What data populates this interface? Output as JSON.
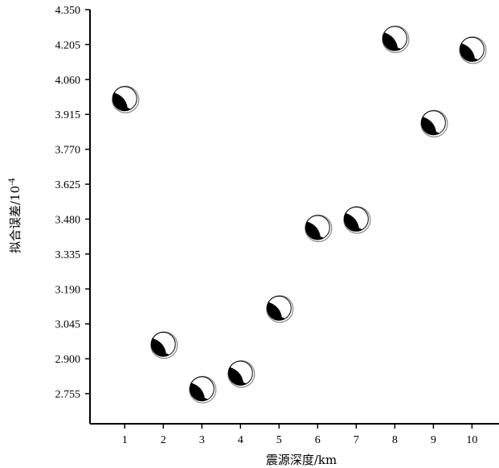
{
  "chart_data": {
    "type": "scatter",
    "marker": "focal-mechanism-beachball",
    "x": [
      1,
      2,
      3,
      4,
      5,
      6,
      7,
      8,
      9,
      10
    ],
    "y": [
      3.98,
      2.96,
      2.775,
      2.84,
      3.11,
      3.445,
      3.48,
      4.23,
      3.88,
      4.185
    ],
    "xlabel": "震源深度/km",
    "ylabel_text": "拟合误差/10",
    "ylabel_exponent": "-4",
    "xticks": [
      "1",
      "2",
      "3",
      "4",
      "5",
      "6",
      "7",
      "8",
      "9",
      "10"
    ],
    "yticks": [
      "2.755",
      "2.900",
      "3.045",
      "3.190",
      "3.335",
      "3.480",
      "3.625",
      "3.770",
      "3.915",
      "4.060",
      "4.205",
      "4.350"
    ],
    "xlim": [
      0.1,
      10.7
    ],
    "ylim": [
      2.63,
      4.35
    ],
    "grid": false,
    "colors": {
      "axis": "#000000",
      "fill": "#000000",
      "background": "#ffffff",
      "marker_ring": "#888888"
    }
  }
}
